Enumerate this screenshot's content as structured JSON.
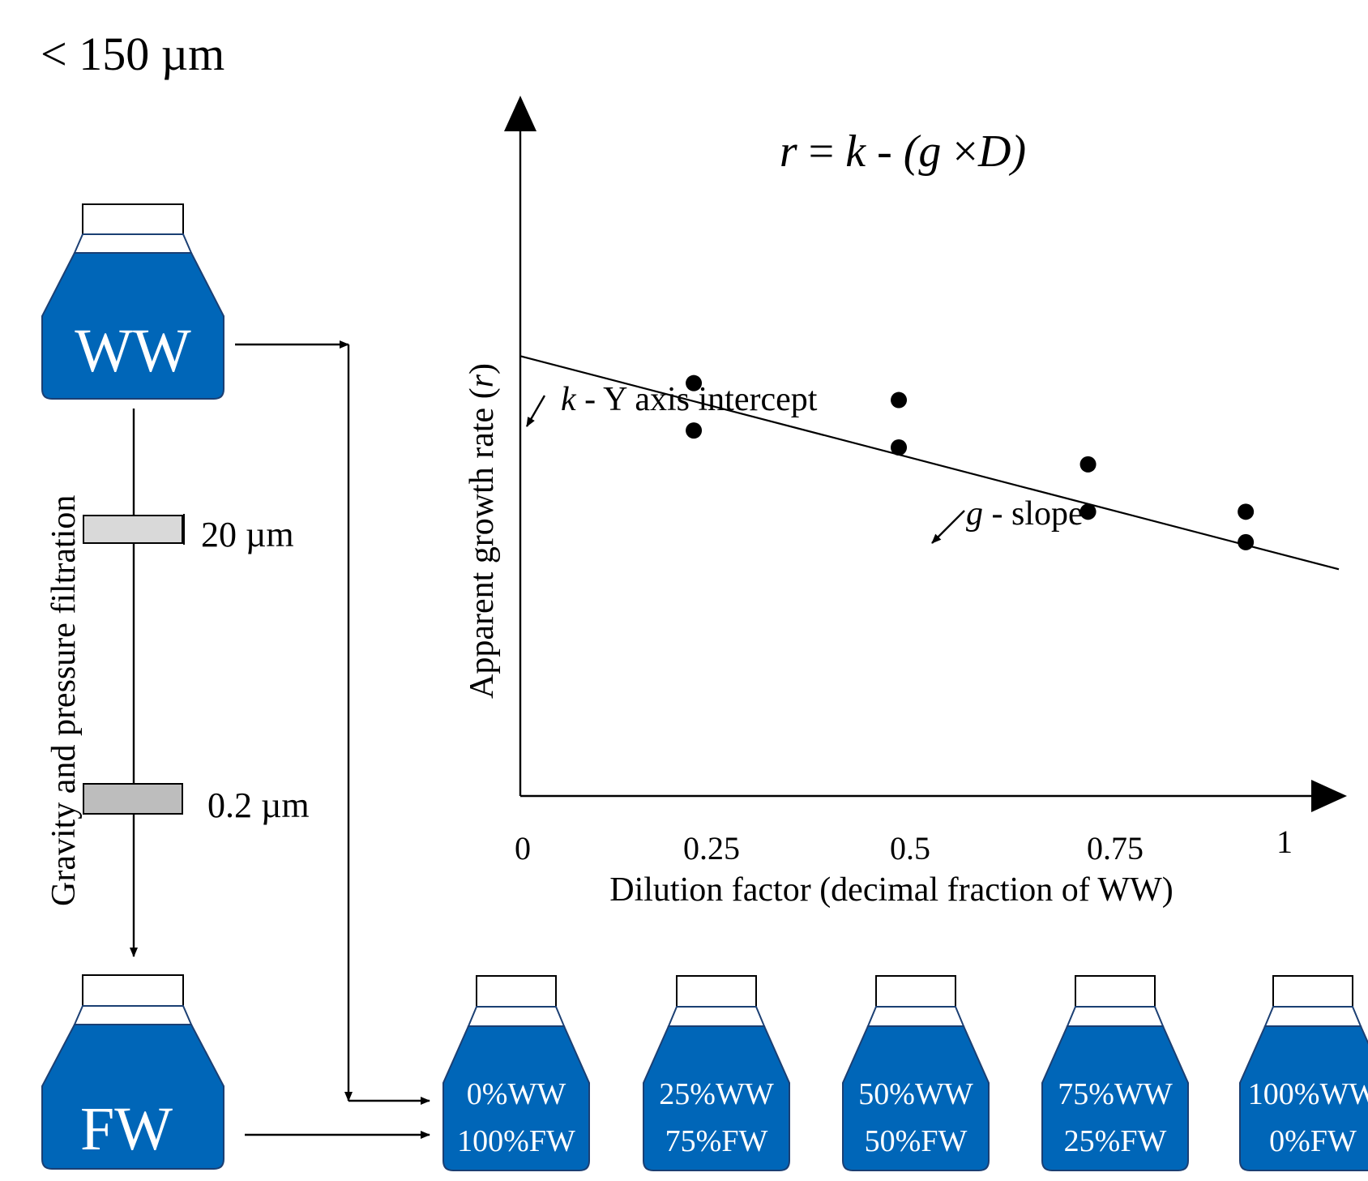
{
  "header_text": "< 150 µm",
  "source_bottles": {
    "ww": "WW",
    "fw": "FW"
  },
  "filtration": {
    "label": "Gravity and pressure filtration",
    "filter_20": "20 µm",
    "filter_02": "0.2 µm"
  },
  "graph": {
    "equation": {
      "r": "r",
      "eq": " = ",
      "k": "k",
      "minus": " - (",
      "g": "g",
      "times": " ×",
      "d": "D",
      "close": ")"
    },
    "y_label_prefix": "Apparent growth rate (",
    "y_label_var": "r",
    "y_label_suffix": ")",
    "x_label": "Dilution factor (decimal fraction of WW)",
    "intercept_var": "k",
    "intercept_text": " - Y axis intercept",
    "slope_var": "g",
    "slope_text": " - slope",
    "x_ticks": [
      "0",
      "0.25",
      "0.5",
      "0.75",
      "1"
    ]
  },
  "chart_data": {
    "type": "scatter",
    "x_ticks": [
      0,
      0.25,
      0.5,
      0.75,
      1
    ],
    "points": [
      {
        "x": 0.22,
        "y": 0.52
      },
      {
        "x": 0.22,
        "y": 0.38
      },
      {
        "x": 0.48,
        "y": 0.47
      },
      {
        "x": 0.48,
        "y": 0.33
      },
      {
        "x": 0.72,
        "y": 0.28
      },
      {
        "x": 0.72,
        "y": 0.14
      },
      {
        "x": 0.92,
        "y": 0.14
      },
      {
        "x": 0.92,
        "y": 0.05
      }
    ],
    "fit": {
      "intercept": 0.6,
      "slope": -0.63
    },
    "x_range": [
      0,
      1
    ],
    "y_range": [
      -0.7,
      1.36
    ]
  },
  "mix_bottles": [
    {
      "ww": "0%WW",
      "fw": "100%FW"
    },
    {
      "ww": "25%WW",
      "fw": "75%FW"
    },
    {
      "ww": "50%WW",
      "fw": "50%FW"
    },
    {
      "ww": "75%WW",
      "fw": "25%FW"
    },
    {
      "ww": "100%WW",
      "fw": "0%FW"
    }
  ]
}
